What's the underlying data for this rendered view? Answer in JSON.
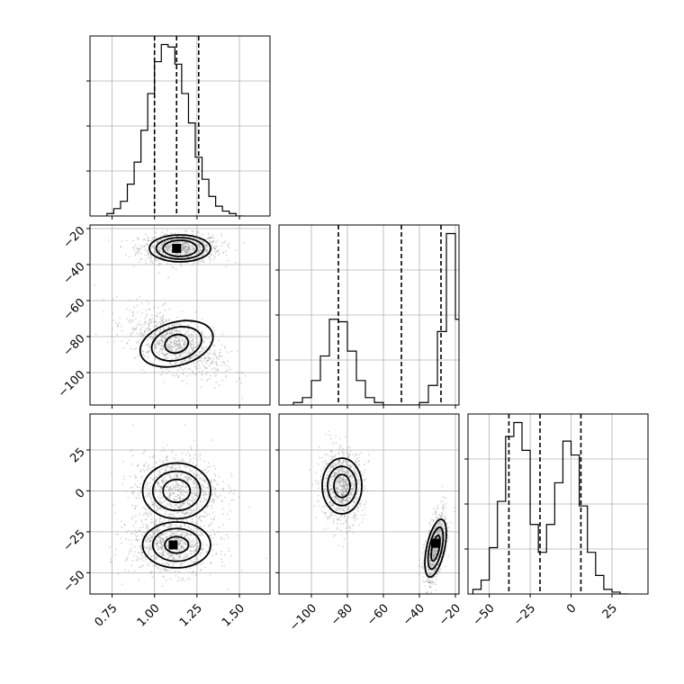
{
  "chart_data": {
    "type": "corner",
    "parameters": [
      {
        "range": [
          0.62,
          1.68
        ],
        "ticks": [
          0.75,
          1.0,
          1.25,
          1.5
        ],
        "tick_labels": [
          "0.75",
          "1.00",
          "1.25",
          "1.50"
        ]
      },
      {
        "range": [
          -118,
          -18
        ],
        "ticks": [
          -100,
          -80,
          -60,
          -40,
          -20
        ],
        "tick_labels": [
          "−100",
          "−80",
          "−60",
          "−40",
          "−20"
        ]
      },
      {
        "range": [
          -63,
          47
        ],
        "ticks": [
          -50,
          -25,
          0,
          25
        ],
        "tick_labels": [
          "−50",
          "−25",
          "0",
          "25"
        ]
      }
    ],
    "quantiles": [
      [
        1.0,
        1.13,
        1.26
      ],
      [
        -85,
        -50,
        -28
      ],
      [
        -38,
        -19,
        6
      ]
    ],
    "histograms": [
      {
        "bin_width": 0.04,
        "bin_start": 0.72,
        "counts": [
          1,
          3,
          6,
          13,
          22,
          35,
          50,
          63,
          70,
          69,
          62,
          50,
          38,
          24,
          15,
          8,
          4,
          2,
          1,
          0
        ]
      },
      {
        "bin_width": 5,
        "bin_start": -110,
        "counts": [
          1,
          3,
          10,
          20,
          35,
          34,
          22,
          10,
          3,
          1,
          0,
          0,
          0,
          0,
          1,
          8,
          30,
          70,
          35,
          3
        ]
      },
      {
        "bin_width": 5,
        "bin_start": -60,
        "counts": [
          1,
          3,
          10,
          20,
          34,
          37,
          31,
          15,
          9,
          15,
          24,
          33,
          30,
          19,
          9,
          4,
          1,
          0.4,
          0
        ]
      }
    ],
    "clusters": [
      {
        "pair": [
          0,
          1
        ],
        "center": [
          1.15,
          -31
        ],
        "sd": [
          0.12,
          4
        ],
        "rho": 0,
        "n": 900
      },
      {
        "pair": [
          0,
          1
        ],
        "center": [
          1.12,
          -84
        ],
        "sd": [
          0.14,
          9
        ],
        "rho": -0.55,
        "n": 1000
      },
      {
        "pair": [
          0,
          2
        ],
        "center": [
          1.13,
          1
        ],
        "sd": [
          0.13,
          11
        ],
        "rho": 0,
        "n": 900
      },
      {
        "pair": [
          0,
          2
        ],
        "center": [
          1.1,
          -33
        ],
        "sd": [
          0.13,
          9
        ],
        "rho": 0,
        "n": 900
      },
      {
        "pair": [
          1,
          2
        ],
        "center": [
          -83,
          3
        ],
        "sd": [
          6,
          11
        ],
        "rho": 0,
        "n": 900
      },
      {
        "pair": [
          1,
          2
        ],
        "center": [
          -31,
          -35
        ],
        "sd": [
          3,
          11
        ],
        "rho": 0.55,
        "n": 800
      }
    ],
    "contours": [
      {
        "pair": [
          0,
          1
        ],
        "center": [
          1.15,
          -31
        ],
        "radii": [
          [
            0.18,
            7.5,
            0
          ],
          [
            0.14,
            6,
            0
          ],
          [
            0.1,
            4.5,
            0
          ]
        ]
      },
      {
        "pair": [
          0,
          1
        ],
        "center": [
          1.13,
          -84
        ],
        "radii": [
          [
            0.22,
            12,
            -16
          ],
          [
            0.15,
            9,
            -16
          ],
          [
            0.07,
            5,
            -16
          ]
        ]
      },
      {
        "pair": [
          0,
          2
        ],
        "center": [
          1.13,
          0
        ],
        "radii": [
          [
            0.2,
            17,
            0
          ],
          [
            0.14,
            12,
            0
          ],
          [
            0.08,
            7,
            0
          ]
        ]
      },
      {
        "pair": [
          0,
          2
        ],
        "center": [
          1.13,
          -33
        ],
        "radii": [
          [
            0.2,
            14,
            0
          ],
          [
            0.14,
            10,
            0
          ],
          [
            0.07,
            5,
            0
          ]
        ]
      },
      {
        "pair": [
          1,
          2
        ],
        "center": [
          -83,
          3
        ],
        "radii": [
          [
            11,
            17,
            0
          ],
          [
            8,
            12,
            0
          ],
          [
            4.5,
            7,
            0
          ]
        ]
      },
      {
        "pair": [
          1,
          2
        ],
        "center": [
          -31,
          -35
        ],
        "radii": [
          [
            5,
            18,
            12
          ],
          [
            3.5,
            13,
            12
          ],
          [
            2,
            8,
            12
          ]
        ]
      }
    ],
    "peaks": [
      {
        "pair": [
          0,
          1
        ],
        "at": [
          1.13,
          -31
        ]
      },
      {
        "pair": [
          0,
          2
        ],
        "at": [
          1.11,
          -33
        ]
      },
      {
        "pair": [
          1,
          2
        ],
        "at": [
          -31,
          -32
        ]
      }
    ],
    "grid": true
  }
}
